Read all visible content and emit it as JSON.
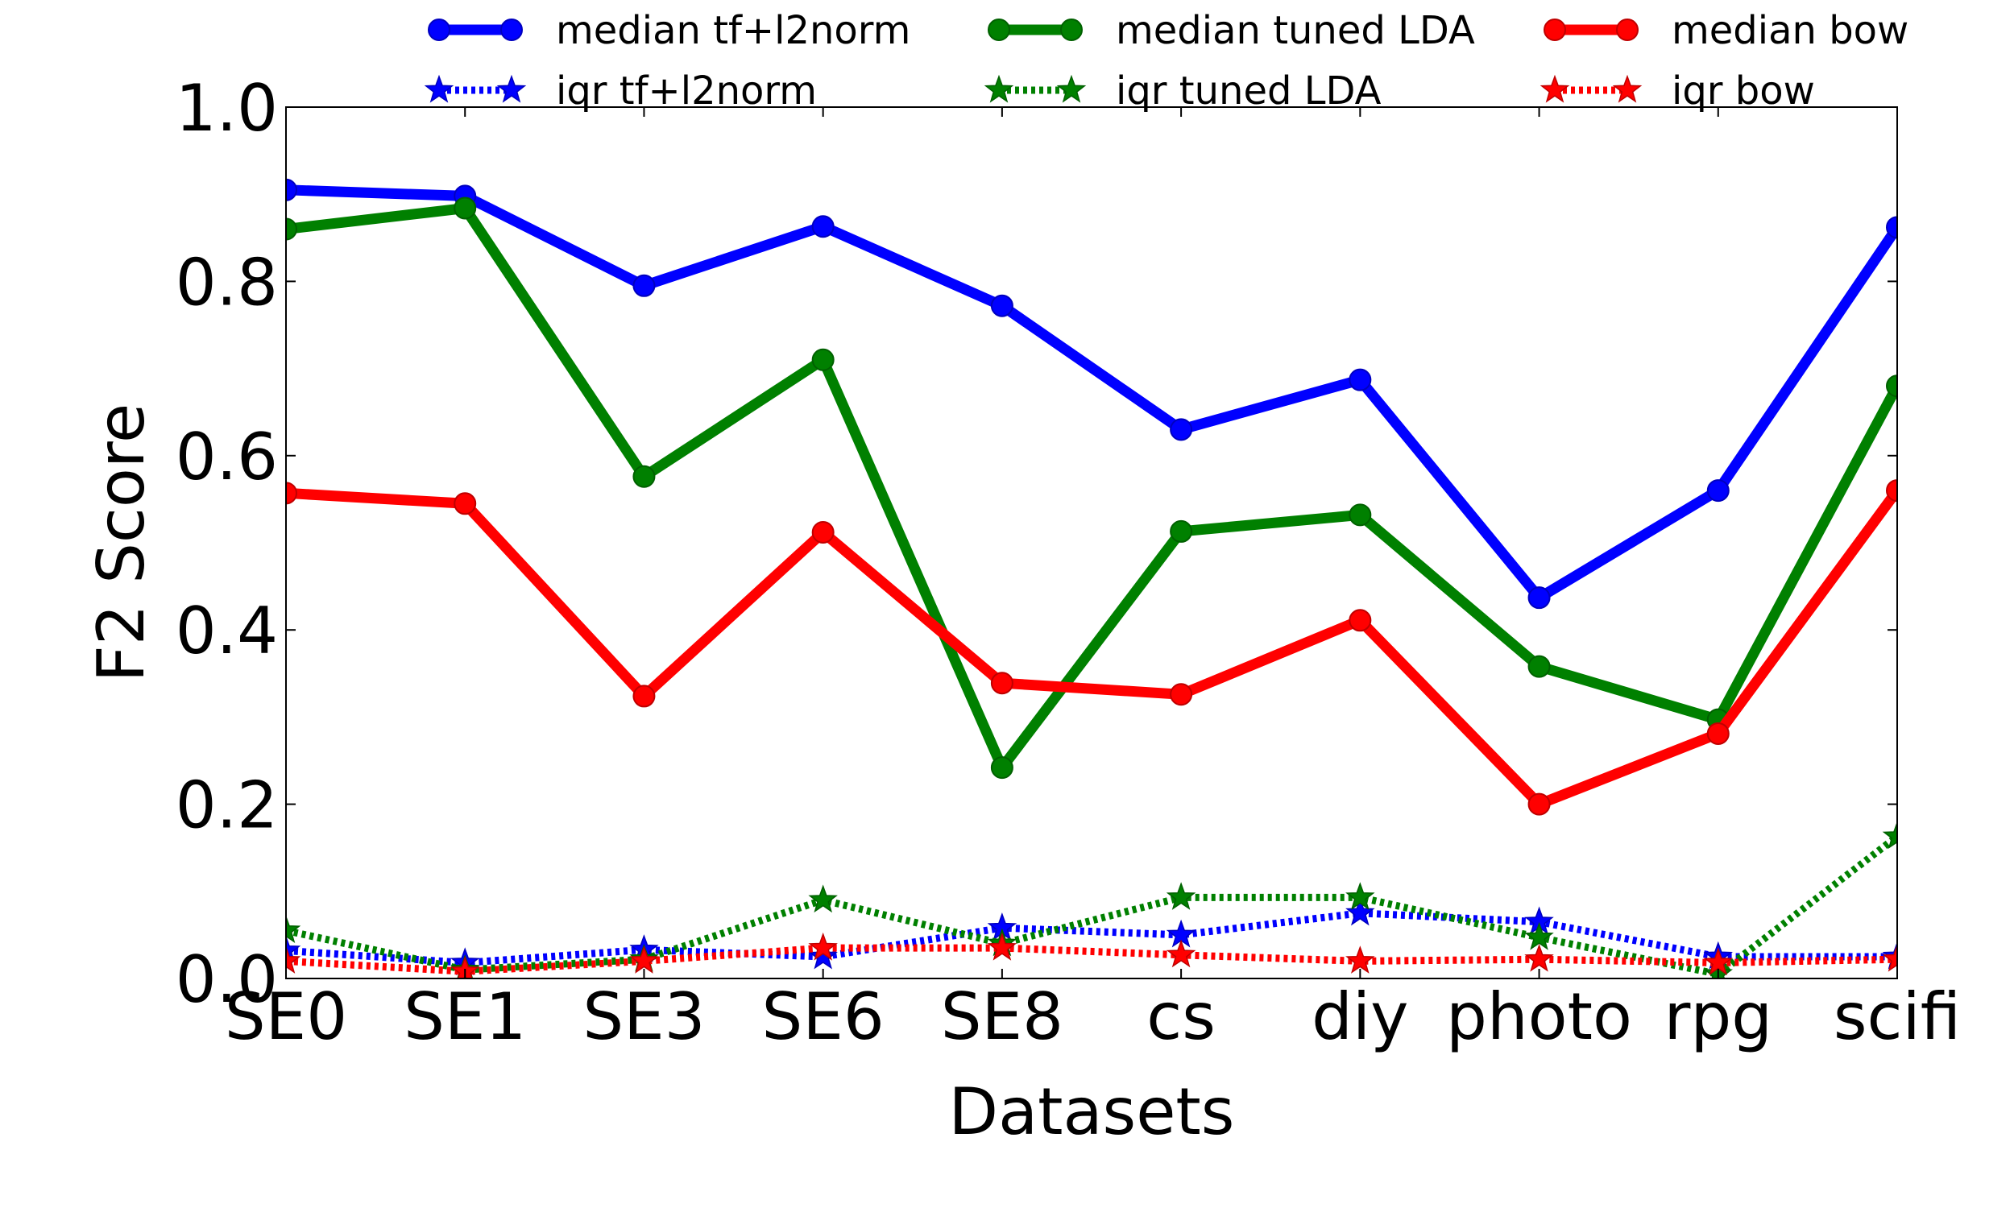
{
  "chart_data": {
    "type": "line",
    "xlabel": "Datasets",
    "ylabel": "F2 Score",
    "categories": [
      "SE0",
      "SE1",
      "SE3",
      "SE6",
      "SE8",
      "cs",
      "diy",
      "photo",
      "rpg",
      "scifi"
    ],
    "ylim": [
      0.0,
      1.0
    ],
    "yticks": [
      "0.0",
      "0.2",
      "0.4",
      "0.6",
      "0.8",
      "1.0"
    ],
    "grid": false,
    "legend_position": "top",
    "series": [
      {
        "name": "median tf+l2norm",
        "color": "#0000ff",
        "style": "solid",
        "marker": "circle",
        "values": [
          0.905,
          0.898,
          0.795,
          0.863,
          0.772,
          0.63,
          0.687,
          0.437,
          0.56,
          0.862
        ]
      },
      {
        "name": "median tuned LDA",
        "color": "#008000",
        "style": "solid",
        "marker": "circle",
        "values": [
          0.86,
          0.884,
          0.576,
          0.71,
          0.242,
          0.513,
          0.532,
          0.358,
          0.297,
          0.68
        ]
      },
      {
        "name": "median bow",
        "color": "#ff0000",
        "style": "solid",
        "marker": "circle",
        "values": [
          0.557,
          0.545,
          0.324,
          0.512,
          0.339,
          0.326,
          0.411,
          0.2,
          0.281,
          0.56
        ]
      },
      {
        "name": "iqr tf+l2norm",
        "color": "#0000ff",
        "style": "dotted",
        "marker": "star",
        "values": [
          0.032,
          0.018,
          0.033,
          0.025,
          0.058,
          0.05,
          0.075,
          0.065,
          0.025,
          0.025
        ]
      },
      {
        "name": "iqr tuned LDA",
        "color": "#008000",
        "style": "dotted",
        "marker": "star",
        "values": [
          0.055,
          0.01,
          0.022,
          0.09,
          0.04,
          0.093,
          0.093,
          0.047,
          0.005,
          0.163
        ]
      },
      {
        "name": "iqr bow",
        "color": "#ff0000",
        "style": "dotted",
        "marker": "star",
        "values": [
          0.02,
          0.008,
          0.02,
          0.035,
          0.035,
          0.027,
          0.02,
          0.022,
          0.018,
          0.022
        ]
      }
    ]
  }
}
